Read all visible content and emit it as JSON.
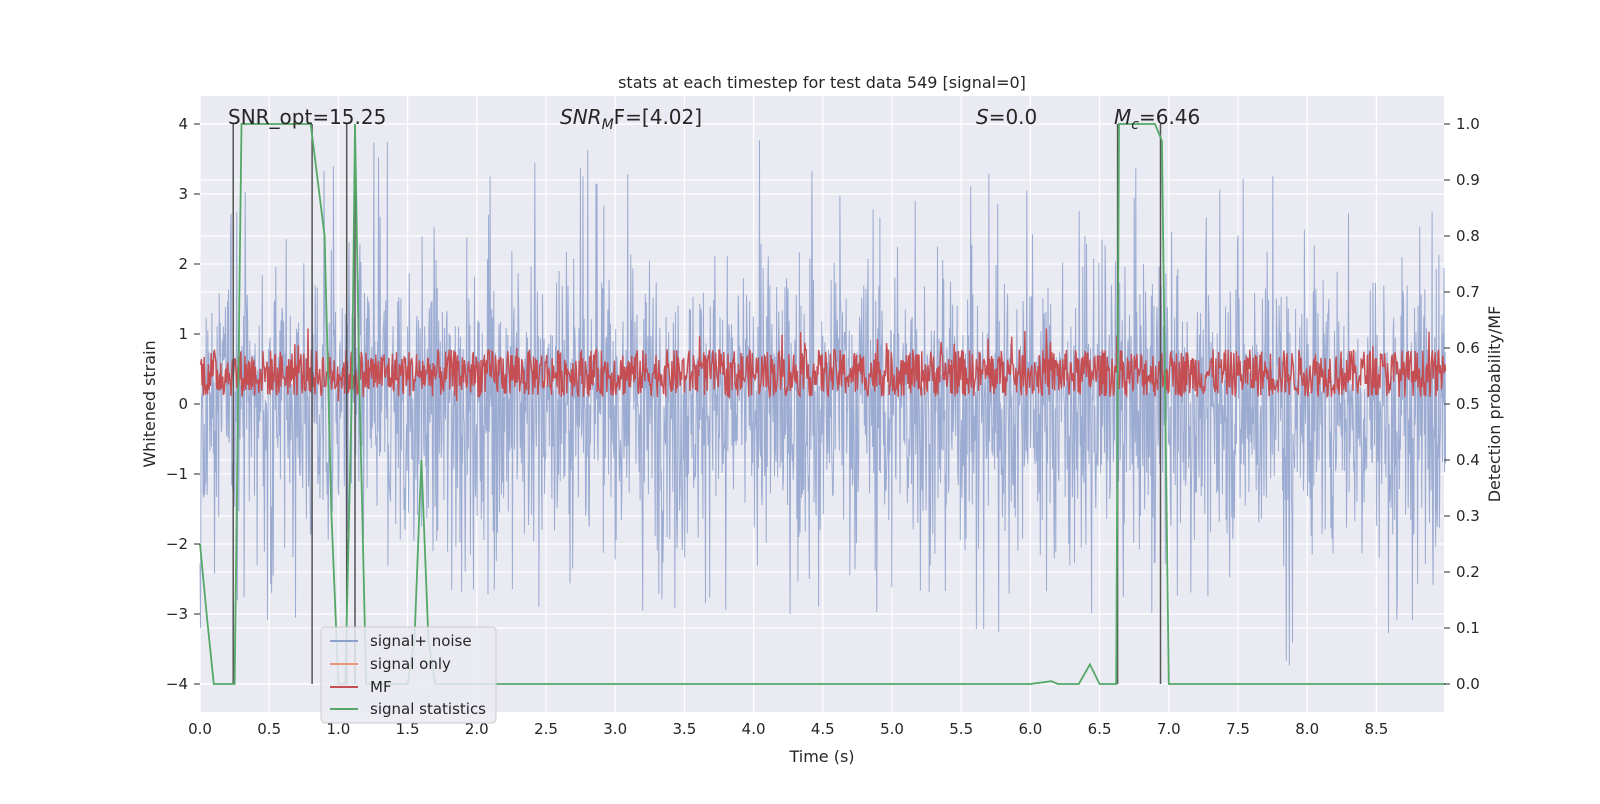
{
  "chart_data": {
    "type": "line",
    "title": "stats at each timestep for test data 549 [signal=0]",
    "xlabel": "Time (s)",
    "ylabel": "Whitened strain",
    "ylabel_right": "Detection probability/MF",
    "xlim": [
      0,
      9.0
    ],
    "ylim": [
      -4.4,
      4.4
    ],
    "ylim_right": [
      -0.05,
      1.05
    ],
    "x_ticks": [
      0.0,
      0.5,
      1.0,
      1.5,
      2.0,
      2.5,
      3.0,
      3.5,
      4.0,
      4.5,
      5.0,
      5.5,
      6.0,
      6.5,
      7.0,
      7.5,
      8.0,
      8.5
    ],
    "x_tick_labels": [
      "0.0",
      "0.5",
      "1.0",
      "1.5",
      "2.0",
      "2.5",
      "3.0",
      "3.5",
      "4.0",
      "4.5",
      "5.0",
      "5.5",
      "6.0",
      "6.5",
      "7.0",
      "7.5",
      "8.0",
      "8.5"
    ],
    "y_ticks": [
      -4,
      -3,
      -2,
      -1,
      0,
      1,
      2,
      3,
      4
    ],
    "y_tick_labels": [
      "−4",
      "−3",
      "−2",
      "−1",
      "0",
      "1",
      "2",
      "3",
      "4"
    ],
    "y_ticks_right": [
      0.0,
      0.1,
      0.2,
      0.3,
      0.4,
      0.5,
      0.6,
      0.7,
      0.8,
      0.9,
      1.0
    ],
    "y_tick_labels_right": [
      "0.0",
      "0.1",
      "0.2",
      "0.3",
      "0.4",
      "0.5",
      "0.6",
      "0.7",
      "0.8",
      "0.9",
      "1.0"
    ],
    "annotations": {
      "snr_opt": "SNR_opt=15.25",
      "snr_mf_main": "SNR",
      "snr_mf_sub": "M",
      "snr_mf_rest": "F=[4.02]",
      "s_main": "S",
      "s_rest": "=0.0",
      "mc_main": "M",
      "mc_sub": "c",
      "mc_rest": "=6.46"
    },
    "legend": {
      "position": "lower-left",
      "entries": [
        {
          "label": "signal+ noise",
          "color": "#8da0cb"
        },
        {
          "label": "signal only",
          "color": "#e9967a"
        },
        {
          "label": "MF",
          "color": "#c44e52"
        },
        {
          "label": "signal statistics",
          "color": "#55a868"
        }
      ]
    },
    "vertical_markers_s": [
      0.24,
      0.81,
      1.06,
      1.12,
      6.63,
      6.94
    ],
    "marker_ylim": [
      -4.0,
      4.0
    ],
    "series": [
      {
        "name": "signal+ noise",
        "color": "#8da0cb",
        "axis": "left",
        "description": "whitened strain noise, roughly symmetric between about -3.6 and +4.0",
        "envelope_x": [
          0.0,
          0.5,
          1.0,
          1.5,
          2.0,
          2.5,
          3.0,
          3.5,
          4.0,
          4.5,
          5.0,
          5.5,
          6.0,
          6.5,
          7.0,
          7.5,
          8.0,
          8.5,
          9.0
        ],
        "envelope_max": [
          2.9,
          3.2,
          3.9,
          3.7,
          3.4,
          3.7,
          3.6,
          3.5,
          3.9,
          3.6,
          3.3,
          3.4,
          3.3,
          3.9,
          3.9,
          3.6,
          3.4,
          3.6,
          3.3
        ],
        "envelope_min": [
          -3.2,
          -3.1,
          -3.0,
          -3.3,
          -3.1,
          -3.3,
          -3.6,
          -3.3,
          -3.0,
          -3.0,
          -3.1,
          -3.3,
          -3.4,
          -3.2,
          -3.2,
          -3.4,
          -4.0,
          -3.4,
          -3.0
        ]
      },
      {
        "name": "MF",
        "color": "#c44e52",
        "axis": "right",
        "description": "matched filter output fluctuating between about 0.51 and 0.63 on the right axis"
      },
      {
        "name": "signal statistics",
        "color": "#55a868",
        "axis": "right",
        "x": [
          0.0,
          0.05,
          0.1,
          0.2,
          0.25,
          0.3,
          0.4,
          0.5,
          0.6,
          0.7,
          0.8,
          0.9,
          0.95,
          1.0,
          1.05,
          1.1,
          1.12,
          1.15,
          1.2,
          1.25,
          1.3,
          1.5,
          1.55,
          1.6,
          1.65,
          1.7,
          1.8,
          2.0,
          3.0,
          4.0,
          5.0,
          6.0,
          6.15,
          6.2,
          6.25,
          6.35,
          6.43,
          6.5,
          6.55,
          6.62,
          6.64,
          6.7,
          6.8,
          6.9,
          6.95,
          7.0,
          7.05,
          7.3,
          7.5,
          8.0,
          9.0
        ],
        "y": [
          0.25,
          0.12,
          0.0,
          0.0,
          0.0,
          1.0,
          1.0,
          1.0,
          1.0,
          1.0,
          1.0,
          0.8,
          0.3,
          0.0,
          0.0,
          0.55,
          1.0,
          0.55,
          0.0,
          0.0,
          0.0,
          0.0,
          0.08,
          0.4,
          0.08,
          0.0,
          0.0,
          0.0,
          0.0,
          0.0,
          0.0,
          0.0,
          0.005,
          0.0,
          0.0,
          0.0,
          0.035,
          0.0,
          0.0,
          0.0,
          1.0,
          1.0,
          1.0,
          1.0,
          0.97,
          0.0,
          0.0,
          0.0,
          0.0,
          0.0,
          0.0
        ]
      }
    ]
  }
}
